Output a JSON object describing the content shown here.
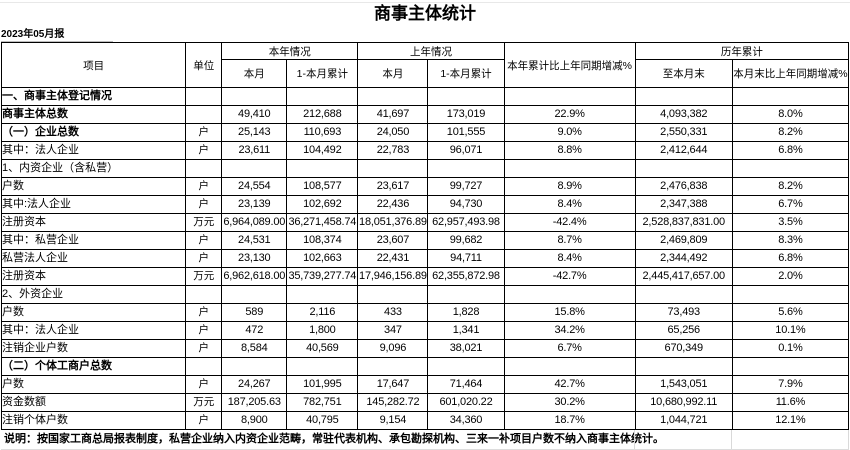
{
  "meta": {
    "title": "商事主体统计",
    "period_label": "2023年05月报",
    "note": "说明：按国家工商总局报表制度，私营企业纳入内资企业范畴，常驻代表机构、承包勘探机构、三来一补项目户数不纳入商事主体统计。"
  },
  "table": {
    "headers": {
      "item": "项目",
      "unit": "单位",
      "this_year": "本年情况",
      "last_year": "上年情况",
      "yoy_change": "本年累计比上年同期增减%",
      "historical": "历年累计",
      "this_month": "本月",
      "cumulative": "1-本月累计",
      "to_month_end": "至本月末",
      "month_end_yoy": "本月末比上年同期增减%"
    },
    "rows": [
      {
        "item": "一、商事主体登记情况",
        "unit": "",
        "bold": true,
        "indent": 0,
        "cells": [
          "",
          "",
          "",
          "",
          "",
          "",
          ""
        ]
      },
      {
        "item": "商事主体总数",
        "unit": "",
        "bold": true,
        "indent": 0,
        "cells": [
          "49,410",
          "212,688",
          "41,697",
          "173,019",
          "22.9%",
          "4,093,382",
          "8.0%"
        ]
      },
      {
        "item": "（一）企业总数",
        "unit": "户",
        "bold": true,
        "indent": 0,
        "cells": [
          "25,143",
          "110,693",
          "24,050",
          "101,555",
          "9.0%",
          "2,550,331",
          "8.2%"
        ]
      },
      {
        "item": "其中：法人企业",
        "unit": "户",
        "bold": false,
        "indent": 1,
        "cells": [
          "23,611",
          "104,492",
          "22,783",
          "96,071",
          "8.8%",
          "2,412,644",
          "6.8%"
        ]
      },
      {
        "item": "1、内资企业（含私营）",
        "unit": "",
        "bold": false,
        "indent": 0,
        "cells": [
          "",
          "",
          "",
          "",
          "",
          "",
          ""
        ]
      },
      {
        "item": "户数",
        "unit": "户",
        "bold": false,
        "indent": 1,
        "cells": [
          "24,554",
          "108,577",
          "23,617",
          "99,727",
          "8.9%",
          "2,476,838",
          "8.2%"
        ]
      },
      {
        "item": "其中:法人企业",
        "unit": "户",
        "bold": false,
        "indent": 1,
        "cells": [
          "23,139",
          "102,692",
          "22,436",
          "94,730",
          "8.4%",
          "2,347,388",
          "6.7%"
        ]
      },
      {
        "item": "注册资本",
        "unit": "万元",
        "bold": false,
        "indent": 1,
        "cells": [
          "6,964,089.00",
          "36,271,458.74",
          "18,051,376.89",
          "62,957,493.98",
          "-42.4%",
          "2,528,837,831.00",
          "3.5%"
        ]
      },
      {
        "item": "其中：私营企业",
        "unit": "户",
        "bold": false,
        "indent": 1,
        "cells": [
          "24,531",
          "108,374",
          "23,607",
          "99,682",
          "8.7%",
          "2,469,809",
          "8.3%"
        ]
      },
      {
        "item": "私营法人企业",
        "unit": "户",
        "bold": false,
        "indent": 2,
        "cells": [
          "23,130",
          "102,663",
          "22,431",
          "94,711",
          "8.4%",
          "2,344,492",
          "6.8%"
        ]
      },
      {
        "item": "注册资本",
        "unit": "万元",
        "bold": false,
        "indent": 2,
        "cells": [
          "6,962,618.00",
          "35,739,277.74",
          "17,946,156.89",
          "62,355,872.98",
          "-42.7%",
          "2,445,417,657.00",
          "2.0%"
        ]
      },
      {
        "item": "2、外资企业",
        "unit": "",
        "bold": false,
        "indent": 0,
        "cells": [
          "",
          "",
          "",
          "",
          "",
          "",
          ""
        ]
      },
      {
        "item": "户数",
        "unit": "户",
        "bold": false,
        "indent": 1,
        "cells": [
          "589",
          "2,116",
          "433",
          "1,828",
          "15.8%",
          "73,493",
          "5.6%"
        ]
      },
      {
        "item": "其中：法人企业",
        "unit": "户",
        "bold": false,
        "indent": 1,
        "cells": [
          "472",
          "1,800",
          "347",
          "1,341",
          "34.2%",
          "65,256",
          "10.1%"
        ]
      },
      {
        "item": "注销企业户数",
        "unit": "户",
        "bold": false,
        "indent": 1,
        "cells": [
          "8,584",
          "40,569",
          "9,096",
          "38,021",
          "6.7%",
          "670,349",
          "0.1%"
        ]
      },
      {
        "item": "（二）个体工商户总数",
        "unit": "",
        "bold": true,
        "indent": 0,
        "cells": [
          "",
          "",
          "",
          "",
          "",
          "",
          ""
        ]
      },
      {
        "item": "户数",
        "unit": "户",
        "bold": false,
        "indent": 1,
        "cells": [
          "24,267",
          "101,995",
          "17,647",
          "71,464",
          "42.7%",
          "1,543,051",
          "7.9%"
        ]
      },
      {
        "item": "资金数额",
        "unit": "万元",
        "bold": false,
        "indent": 1,
        "cells": [
          "187,205.63",
          "782,751",
          "145,282.72",
          "601,020.22",
          "30.2%",
          "10,680,992.11",
          "11.6%"
        ]
      },
      {
        "item": "注销个体户数",
        "unit": "户",
        "bold": false,
        "indent": 1,
        "cells": [
          "8,900",
          "40,795",
          "9,154",
          "34,360",
          "18.7%",
          "1,044,721",
          "12.1%"
        ]
      }
    ]
  }
}
